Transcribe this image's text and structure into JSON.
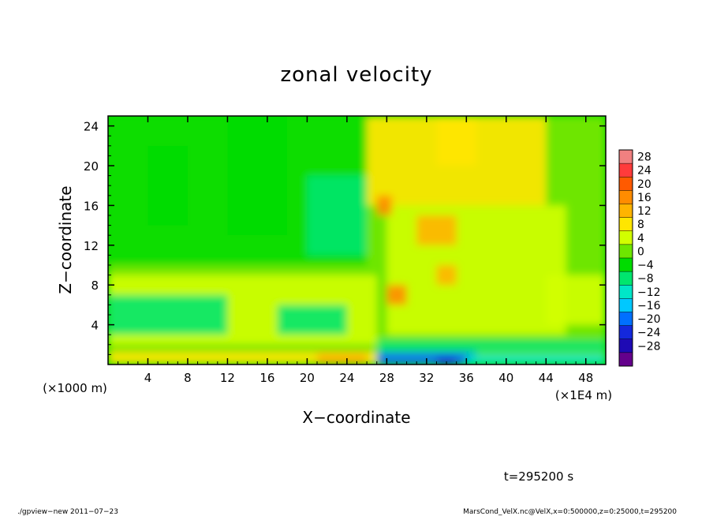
{
  "chart_data": {
    "type": "heatmap",
    "title": "zonal velocity",
    "xlabel": "X−coordinate",
    "ylabel": "Z−coordinate",
    "x_unit": "(×1E4 m)",
    "y_unit": "(×1000 m)",
    "xlim": [
      0,
      50
    ],
    "ylim": [
      0,
      25
    ],
    "xticks": [
      4,
      8,
      12,
      16,
      20,
      24,
      28,
      32,
      36,
      40,
      44,
      48
    ],
    "yticks": [
      4,
      8,
      12,
      16,
      20,
      24
    ],
    "colorbar_levels": [
      28,
      24,
      20,
      16,
      12,
      8,
      4,
      0,
      -4,
      -8,
      -12,
      -16,
      -20,
      -24,
      -28
    ],
    "colorbar_labels": [
      "28",
      "24",
      "20",
      "16",
      "12",
      "8",
      "4",
      "0",
      "−4",
      "−8",
      "−12",
      "−16",
      "−20",
      "−24",
      "−28"
    ],
    "colorbar_colors": [
      "#f08080",
      "#ff3b3b",
      "#ff5a00",
      "#ff8c00",
      "#ffb400",
      "#ffe600",
      "#d2ff00",
      "#6ee600",
      "#00dc00",
      "#00e66e",
      "#00e6c8",
      "#00c8ff",
      "#0070ff",
      "#1428dc",
      "#1e0ab4",
      "#64008c"
    ],
    "time_label": "t=295200 s",
    "footer_left": "./gpview−new   2011−07−23",
    "footer_right": "MarsCond_VelX.nc@VelX,x=0:500000,z=0:25000,t=295200",
    "regions": [
      {
        "x": [
          0,
          50
        ],
        "z": [
          0,
          25
        ],
        "value": 0
      },
      {
        "x": [
          0,
          26
        ],
        "z": [
          10,
          25
        ],
        "value": -2
      },
      {
        "x": [
          12,
          18
        ],
        "z": [
          13,
          25
        ],
        "value": -4
      },
      {
        "x": [
          4,
          8
        ],
        "z": [
          14,
          22
        ],
        "value": -4
      },
      {
        "x": [
          29,
          44
        ],
        "z": [
          16,
          25
        ],
        "value": 8
      },
      {
        "x": [
          26,
          29
        ],
        "z": [
          16,
          25
        ],
        "value": 10
      },
      {
        "x": [
          33,
          37
        ],
        "z": [
          20,
          25
        ],
        "value": 10
      },
      {
        "x": [
          28,
          46
        ],
        "z": [
          3,
          16
        ],
        "value": 6
      },
      {
        "x": [
          31,
          35
        ],
        "z": [
          12,
          15
        ],
        "value": 12
      },
      {
        "x": [
          28,
          30
        ],
        "z": [
          6,
          8
        ],
        "value": 16
      },
      {
        "x": [
          27,
          28.5
        ],
        "z": [
          15,
          17
        ],
        "value": 16
      },
      {
        "x": [
          33,
          35
        ],
        "z": [
          8,
          10
        ],
        "value": 12
      },
      {
        "x": [
          20,
          26
        ],
        "z": [
          11,
          19
        ],
        "value": -8
      },
      {
        "x": [
          0,
          27
        ],
        "z": [
          2,
          9
        ],
        "value": 4
      },
      {
        "x": [
          0,
          12
        ],
        "z": [
          3,
          7
        ],
        "value": -6
      },
      {
        "x": [
          17,
          24
        ],
        "z": [
          3,
          6
        ],
        "value": -8
      },
      {
        "x": [
          0,
          27
        ],
        "z": [
          0,
          1.3
        ],
        "value": 8
      },
      {
        "x": [
          21,
          26
        ],
        "z": [
          0,
          1.2
        ],
        "value": 14
      },
      {
        "x": [
          27,
          37
        ],
        "z": [
          0,
          1.5
        ],
        "value": -20
      },
      {
        "x": [
          36,
          50
        ],
        "z": [
          0,
          1
        ],
        "value": -12
      },
      {
        "x": [
          33,
          35
        ],
        "z": [
          0,
          0.8
        ],
        "value": -24
      },
      {
        "x": [
          27,
          50
        ],
        "z": [
          1.2,
          2.5
        ],
        "value": -8
      },
      {
        "x": [
          44,
          50
        ],
        "z": [
          4,
          9
        ],
        "value": 4
      }
    ]
  }
}
